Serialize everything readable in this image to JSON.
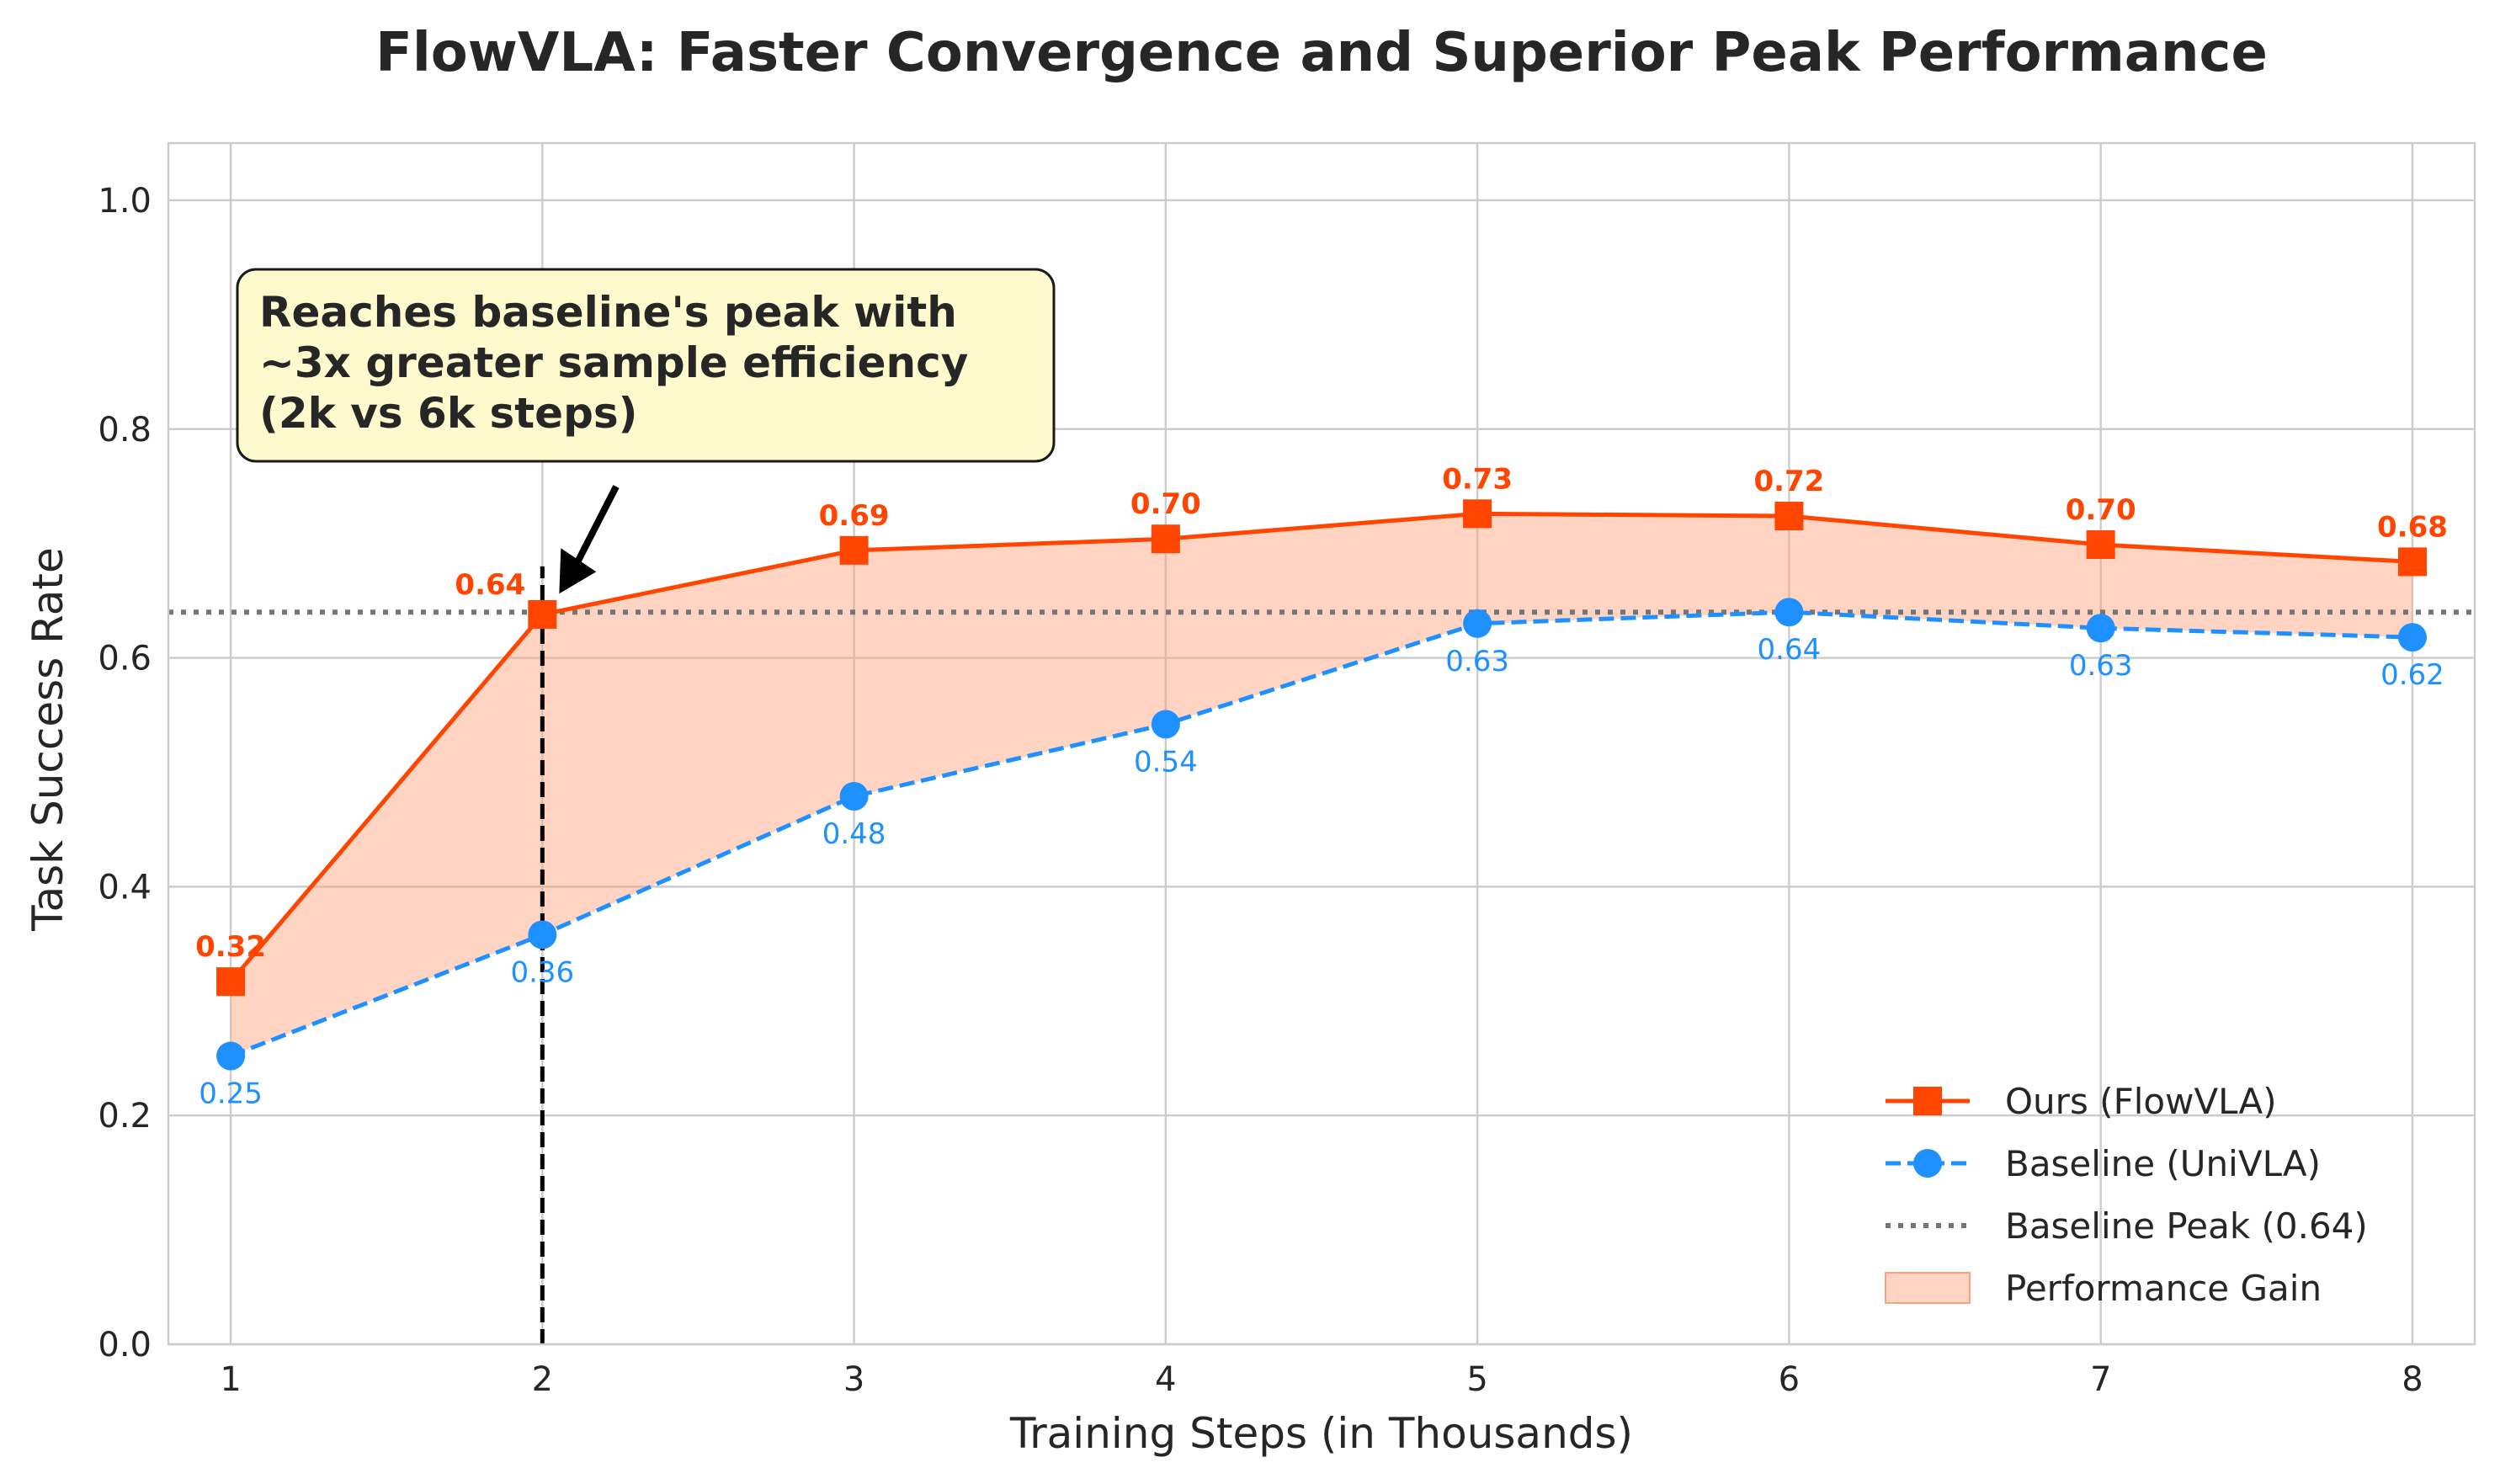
{
  "chart_data": {
    "type": "line",
    "title": "FlowVLA: Faster Convergence and Superior Peak Performance",
    "xlabel": "Training Steps (in Thousands)",
    "ylabel": "Task Success Rate",
    "x": [
      1,
      2,
      3,
      4,
      5,
      6,
      7,
      8
    ],
    "x_ticks": [
      "1",
      "2",
      "3",
      "4",
      "5",
      "6",
      "7",
      "8"
    ],
    "y_ticks": [
      "0.0",
      "0.2",
      "0.4",
      "0.6",
      "0.8",
      "1.0"
    ],
    "xlim": [
      0.8,
      8.2
    ],
    "ylim": [
      0,
      1.05
    ],
    "grid": true,
    "legend_position": "lower-right",
    "series": [
      {
        "name": "Ours (FlowVLA)",
        "values": [
          0.317,
          0.638,
          0.694,
          0.704,
          0.726,
          0.724,
          0.699,
          0.684
        ],
        "labels": [
          "0.32",
          "0.64",
          "0.69",
          "0.70",
          "0.73",
          "0.72",
          "0.70",
          "0.68"
        ],
        "color": "#ff4500",
        "marker": "square",
        "line_style": "solid"
      },
      {
        "name": "Baseline (UniVLA)",
        "values": [
          0.252,
          0.358,
          0.479,
          0.542,
          0.63,
          0.64,
          0.626,
          0.618
        ],
        "labels": [
          "0.25",
          "0.36",
          "0.48",
          "0.54",
          "0.63",
          "0.64",
          "0.63",
          "0.62"
        ],
        "color": "#1e90ff",
        "marker": "circle",
        "line_style": "dashed"
      }
    ],
    "reference_line": {
      "name": "Baseline Peak (0.64)",
      "value": 0.64,
      "color": "#757575",
      "line_style": "dotted"
    },
    "fill_between": {
      "name": "Performance Gain",
      "color": "#ffa07a"
    },
    "vertical_marker": {
      "x": 2,
      "color": "#000000",
      "line_style": "dashed"
    },
    "annotation": {
      "lines": [
        "Reaches baseline's peak with",
        "~3x greater sample efficiency",
        "(2k vs 6k steps)"
      ],
      "target_x": 2,
      "target_y": 0.64,
      "box_color": "#fffacd"
    }
  }
}
